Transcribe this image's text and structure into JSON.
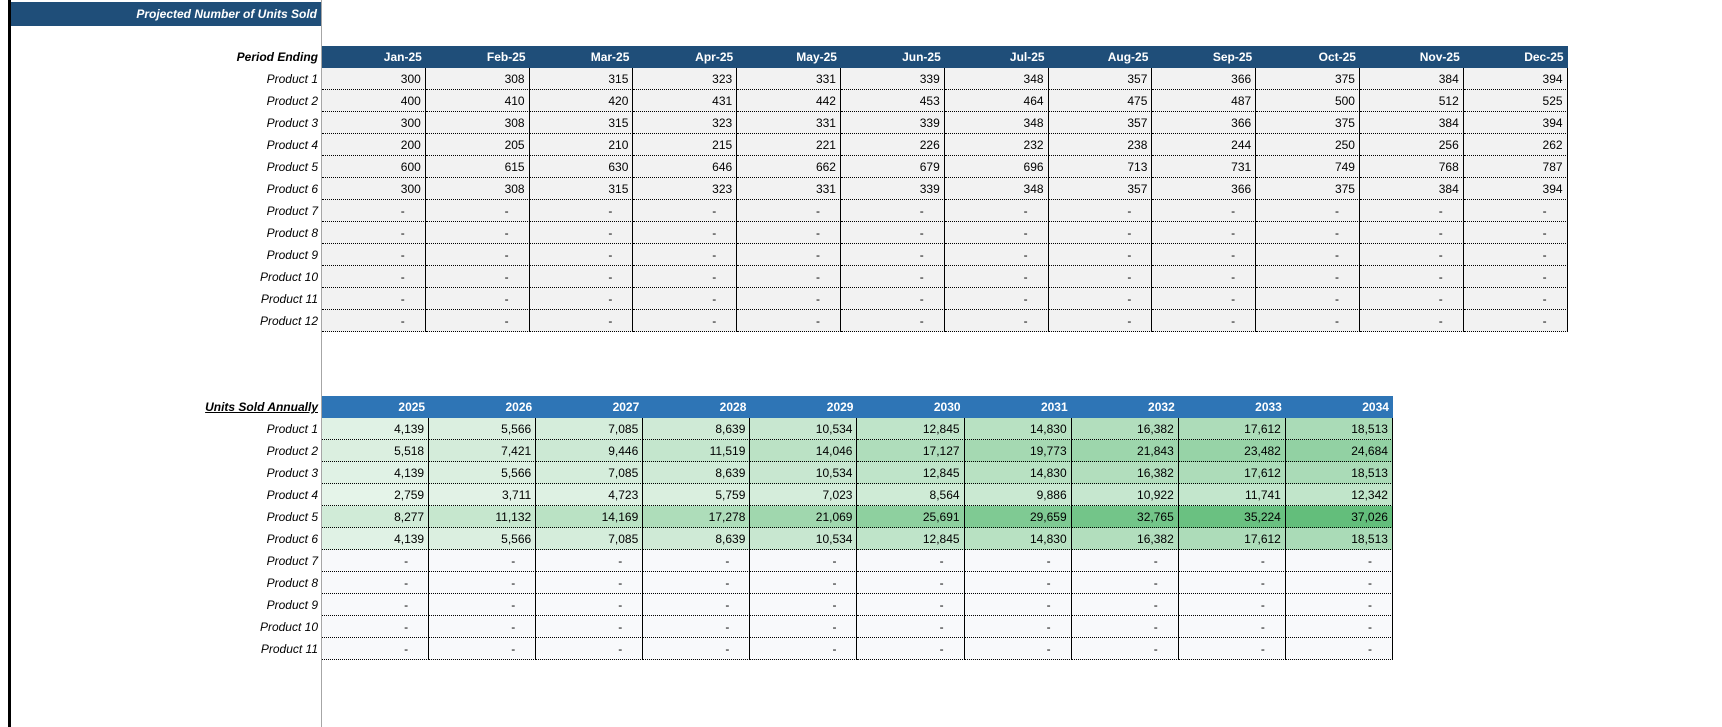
{
  "title": "Projected Number of Units Sold",
  "colors": {
    "header_dark": "#1F4E79",
    "header_annual": "#2E75B6",
    "monthly_cell": "#F2F2F2",
    "empty_annual": "#F8F9FB",
    "scale_low": "#F0F8F2",
    "scale_high": "#63BE7B"
  },
  "monthly": {
    "header_label": "Period Ending",
    "columns": [
      "Jan-25",
      "Feb-25",
      "Mar-25",
      "Apr-25",
      "May-25",
      "Jun-25",
      "Jul-25",
      "Aug-25",
      "Sep-25",
      "Oct-25",
      "Nov-25",
      "Dec-25"
    ],
    "rows": [
      {
        "label": "Product 1",
        "values": [
          "300",
          "308",
          "315",
          "323",
          "331",
          "339",
          "348",
          "357",
          "366",
          "375",
          "384",
          "394"
        ]
      },
      {
        "label": "Product 2",
        "values": [
          "400",
          "410",
          "420",
          "431",
          "442",
          "453",
          "464",
          "475",
          "487",
          "500",
          "512",
          "525"
        ]
      },
      {
        "label": "Product 3",
        "values": [
          "300",
          "308",
          "315",
          "323",
          "331",
          "339",
          "348",
          "357",
          "366",
          "375",
          "384",
          "394"
        ]
      },
      {
        "label": "Product 4",
        "values": [
          "200",
          "205",
          "210",
          "215",
          "221",
          "226",
          "232",
          "238",
          "244",
          "250",
          "256",
          "262"
        ]
      },
      {
        "label": "Product 5",
        "values": [
          "600",
          "615",
          "630",
          "646",
          "662",
          "679",
          "696",
          "713",
          "731",
          "749",
          "768",
          "787"
        ]
      },
      {
        "label": "Product 6",
        "values": [
          "300",
          "308",
          "315",
          "323",
          "331",
          "339",
          "348",
          "357",
          "366",
          "375",
          "384",
          "394"
        ]
      },
      {
        "label": "Product 7",
        "values": [
          "-",
          "-",
          "-",
          "-",
          "-",
          "-",
          "-",
          "-",
          "-",
          "-",
          "-",
          "-"
        ]
      },
      {
        "label": "Product 8",
        "values": [
          "-",
          "-",
          "-",
          "-",
          "-",
          "-",
          "-",
          "-",
          "-",
          "-",
          "-",
          "-"
        ]
      },
      {
        "label": "Product 9",
        "values": [
          "-",
          "-",
          "-",
          "-",
          "-",
          "-",
          "-",
          "-",
          "-",
          "-",
          "-",
          "-"
        ]
      },
      {
        "label": "Product 10",
        "values": [
          "-",
          "-",
          "-",
          "-",
          "-",
          "-",
          "-",
          "-",
          "-",
          "-",
          "-",
          "-"
        ]
      },
      {
        "label": "Product 11",
        "values": [
          "-",
          "-",
          "-",
          "-",
          "-",
          "-",
          "-",
          "-",
          "-",
          "-",
          "-",
          "-"
        ]
      },
      {
        "label": "Product 12",
        "values": [
          "-",
          "-",
          "-",
          "-",
          "-",
          "-",
          "-",
          "-",
          "-",
          "-",
          "-",
          "-"
        ]
      }
    ]
  },
  "annual": {
    "header_label": "Units Sold  Annually",
    "columns": [
      "2025",
      "2026",
      "2027",
      "2028",
      "2029",
      "2030",
      "2031",
      "2032",
      "2033",
      "2034"
    ],
    "rows": [
      {
        "label": "Product 1",
        "values": [
          "4,139",
          "5,566",
          "7,085",
          "8,639",
          "10,534",
          "12,845",
          "14,830",
          "16,382",
          "17,612",
          "18,513"
        ]
      },
      {
        "label": "Product 2",
        "values": [
          "5,518",
          "7,421",
          "9,446",
          "11,519",
          "14,046",
          "17,127",
          "19,773",
          "21,843",
          "23,482",
          "24,684"
        ]
      },
      {
        "label": "Product 3",
        "values": [
          "4,139",
          "5,566",
          "7,085",
          "8,639",
          "10,534",
          "12,845",
          "14,830",
          "16,382",
          "17,612",
          "18,513"
        ]
      },
      {
        "label": "Product 4",
        "values": [
          "2,759",
          "3,711",
          "4,723",
          "5,759",
          "7,023",
          "8,564",
          "9,886",
          "10,922",
          "11,741",
          "12,342"
        ]
      },
      {
        "label": "Product 5",
        "values": [
          "8,277",
          "11,132",
          "14,169",
          "17,278",
          "21,069",
          "25,691",
          "29,659",
          "32,765",
          "35,224",
          "37,026"
        ]
      },
      {
        "label": "Product 6",
        "values": [
          "4,139",
          "5,566",
          "7,085",
          "8,639",
          "10,534",
          "12,845",
          "14,830",
          "16,382",
          "17,612",
          "18,513"
        ]
      },
      {
        "label": "Product 7",
        "values": [
          "-",
          "-",
          "-",
          "-",
          "-",
          "-",
          "-",
          "-",
          "-",
          "-"
        ]
      },
      {
        "label": "Product 8",
        "values": [
          "-",
          "-",
          "-",
          "-",
          "-",
          "-",
          "-",
          "-",
          "-",
          "-"
        ]
      },
      {
        "label": "Product 9",
        "values": [
          "-",
          "-",
          "-",
          "-",
          "-",
          "-",
          "-",
          "-",
          "-",
          "-"
        ]
      },
      {
        "label": "Product 10",
        "values": [
          "-",
          "-",
          "-",
          "-",
          "-",
          "-",
          "-",
          "-",
          "-",
          "-"
        ]
      },
      {
        "label": "Product 11",
        "values": [
          "-",
          "-",
          "-",
          "-",
          "-",
          "-",
          "-",
          "-",
          "-",
          "-"
        ]
      }
    ]
  }
}
